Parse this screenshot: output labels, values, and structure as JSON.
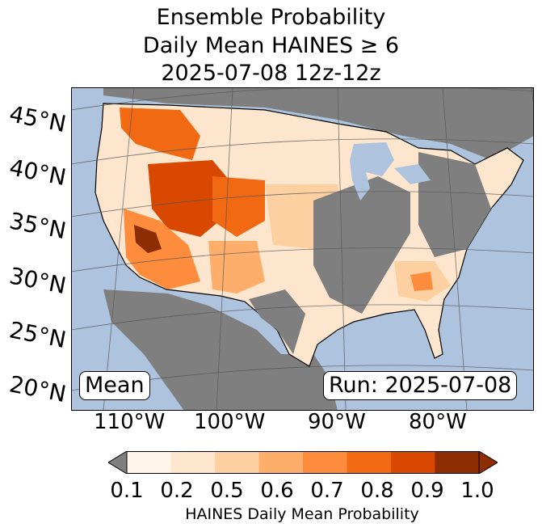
{
  "title": {
    "line1": "Ensemble Probability",
    "line2": "Daily Mean HAINES ≥ 6",
    "line3": "2025-07-08 12z-12z"
  },
  "map": {
    "lat_labels": [
      "45°N",
      "40°N",
      "35°N",
      "30°N",
      "25°N",
      "20°N"
    ],
    "lon_labels": [
      "110°W",
      "100°W",
      "90°W",
      "80°W"
    ],
    "stat_box": "Mean",
    "run_box": "Run: 2025-07-08",
    "ocean_color": "#adc3de",
    "nodata_color": "#7f7f7f"
  },
  "colorbar": {
    "ticks": [
      "0.1",
      "0.2",
      "0.5",
      "0.6",
      "0.7",
      "0.8",
      "0.9",
      "1.0"
    ],
    "colors": [
      "#fff5eb",
      "#fee6ce",
      "#fdd0a2",
      "#fdae6b",
      "#fd8d3c",
      "#f16913",
      "#d94801",
      "#8c2d04"
    ],
    "under_color": "#7f7f7f",
    "label": "HAINES Daily Mean Probability"
  }
}
